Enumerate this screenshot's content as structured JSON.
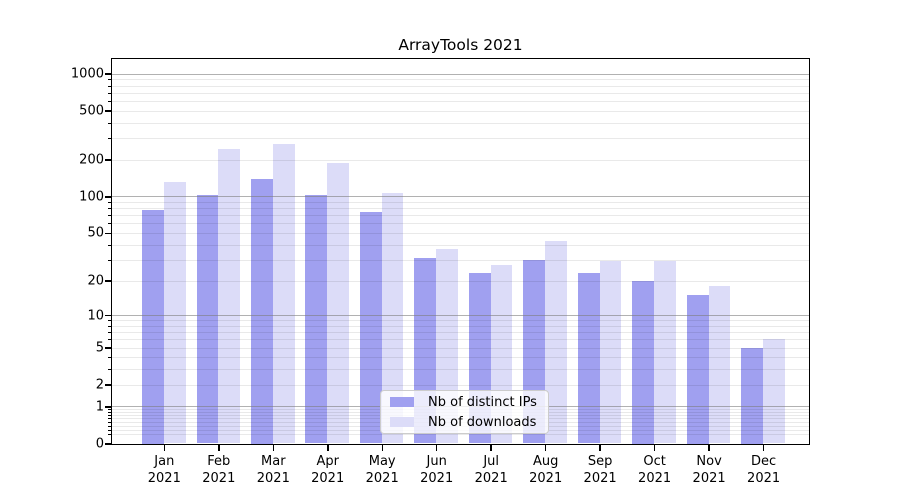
{
  "title": "ArrayTools 2021",
  "chart_data": {
    "type": "bar",
    "title": "ArrayTools 2021",
    "categories": [
      "Jan",
      "Feb",
      "Mar",
      "Apr",
      "May",
      "Jun",
      "Jul",
      "Aug",
      "Sep",
      "Oct",
      "Nov",
      "Dec"
    ],
    "year": "2021",
    "series": [
      {
        "name": "Nb of distinct IPs",
        "color": "#a0a0f0",
        "values": [
          78,
          103,
          140,
          103,
          75,
          31,
          23,
          30,
          23,
          20,
          15,
          5
        ]
      },
      {
        "name": "Nb of downloads",
        "color": "#dcdcf8",
        "values": [
          130,
          245,
          268,
          188,
          106,
          37,
          27,
          43,
          29,
          29,
          18,
          6
        ]
      }
    ],
    "yscale": "log1p",
    "ylim": [
      0,
      1312
    ],
    "yticks": [
      0,
      1,
      2,
      5,
      10,
      20,
      50,
      100,
      200,
      500,
      1000
    ],
    "major_gridline_values": [
      1,
      10,
      100,
      1000
    ],
    "grid": true,
    "legend_position": "lower-center",
    "xlabel": "",
    "ylabel": ""
  }
}
